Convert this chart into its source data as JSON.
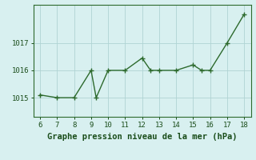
{
  "x": [
    6,
    7,
    8,
    9,
    9.3,
    10,
    11,
    12,
    12.5,
    13,
    14,
    15,
    15.5,
    16,
    17,
    18
  ],
  "y": [
    1015.1,
    1015.0,
    1015.0,
    1016.0,
    1015.0,
    1016.0,
    1016.0,
    1016.45,
    1016.0,
    1016.0,
    1016.0,
    1016.2,
    1016.0,
    1016.0,
    1017.0,
    1018.05
  ],
  "line_color": "#2d6a2d",
  "marker_color": "#2d6a2d",
  "bg_color": "#d8f0f0",
  "grid_color": "#b0d4d4",
  "xlabel": "Graphe pression niveau de la mer (hPa)",
  "xlabel_color": "#1a4d1a",
  "xlabel_fontsize": 7.5,
  "tick_color": "#1a4d1a",
  "tick_fontsize": 6.5,
  "yticks": [
    1015,
    1016,
    1017
  ],
  "xticks": [
    6,
    7,
    8,
    9,
    10,
    11,
    12,
    13,
    14,
    15,
    16,
    17,
    18
  ],
  "xlim": [
    5.6,
    18.4
  ],
  "ylim": [
    1014.3,
    1018.4
  ],
  "border_color": "#2d6a2d"
}
